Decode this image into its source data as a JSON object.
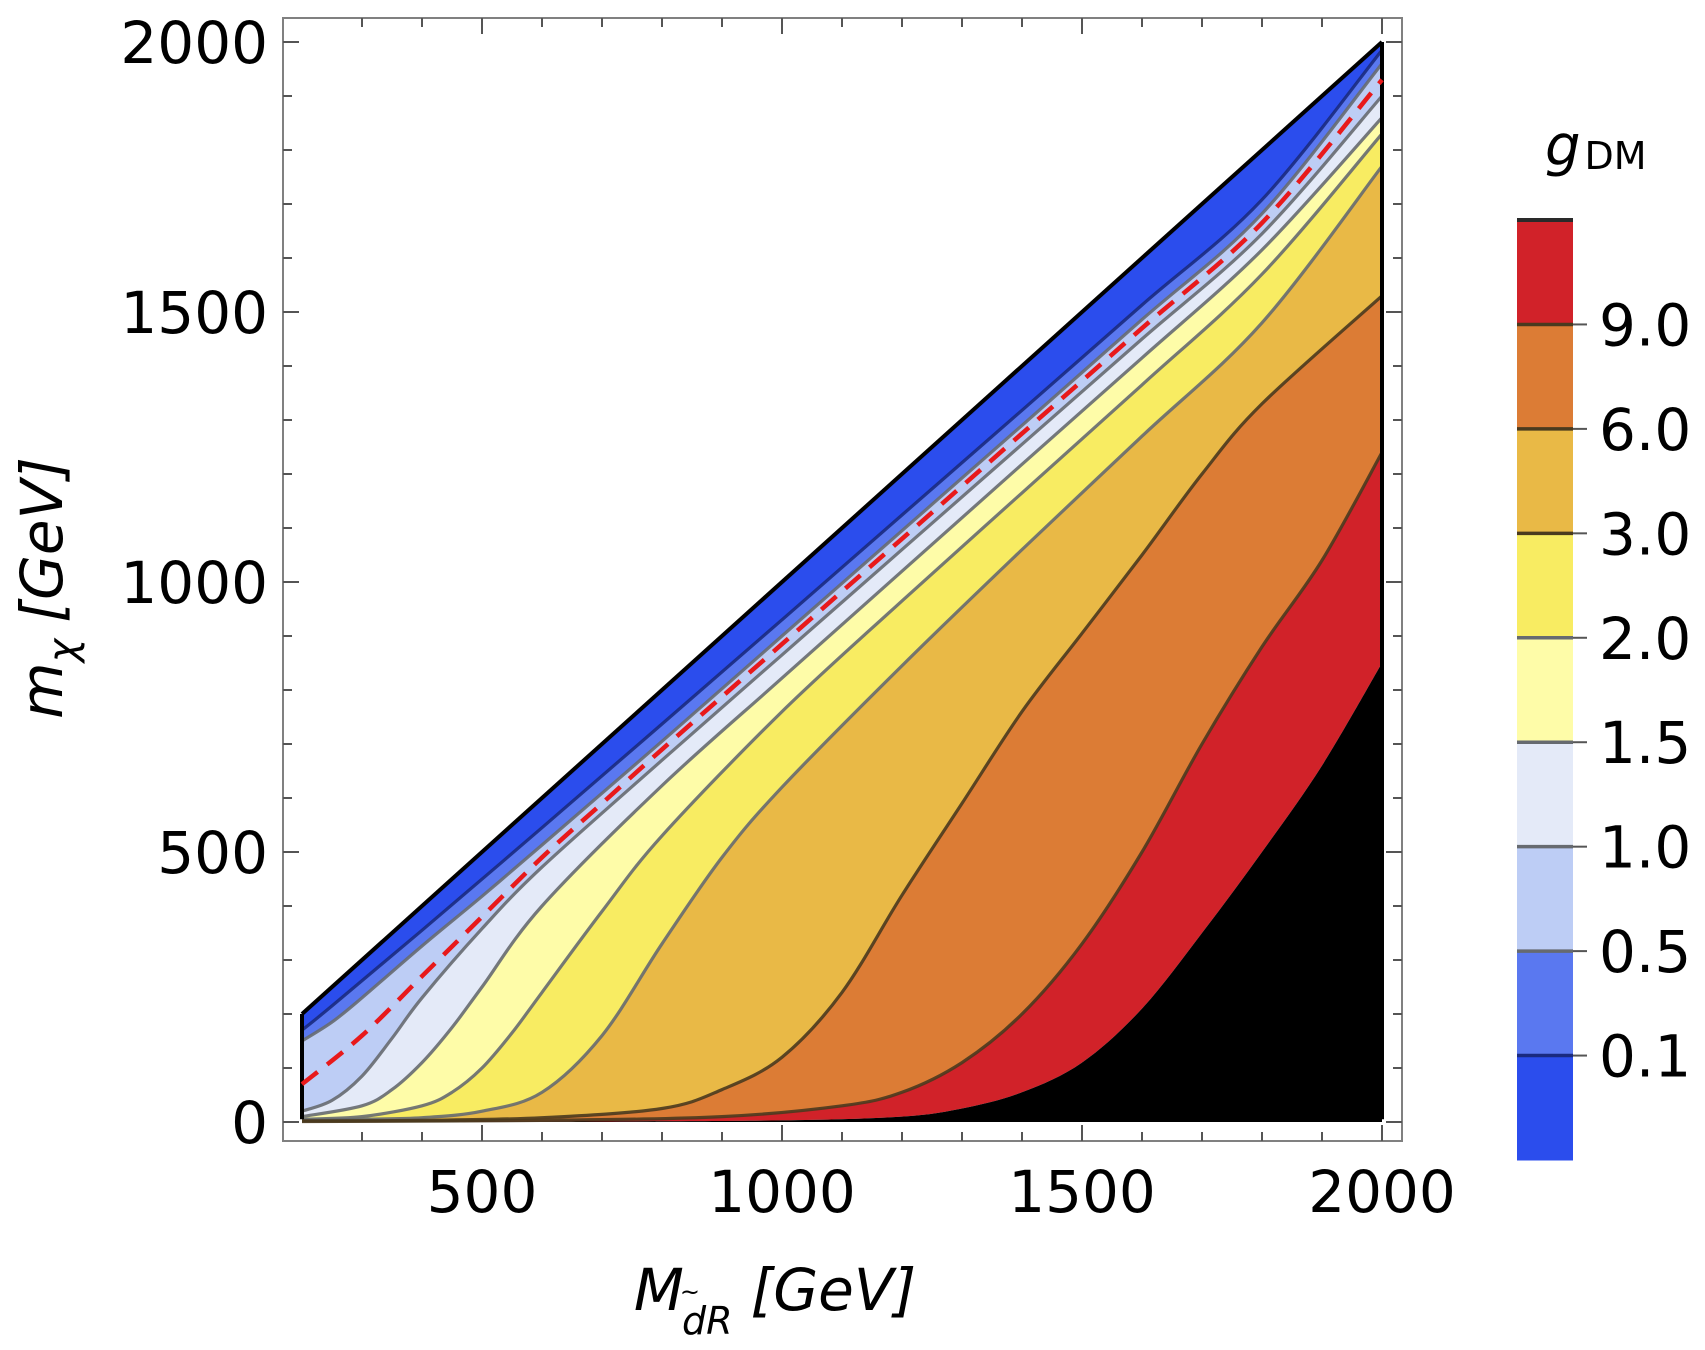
{
  "chart_data": {
    "type": "contour",
    "xlabel": {
      "main": "M",
      "sub_tilde": "~",
      "sub": "dR",
      "unit": "[GeV]"
    },
    "ylabel": {
      "main": "m",
      "sub": "χ",
      "unit": "[GeV]"
    },
    "xlim": [
      200,
      2000
    ],
    "ylim": [
      0,
      2000
    ],
    "xticks": [
      500,
      1000,
      1500,
      2000
    ],
    "yticks": [
      0,
      500,
      1000,
      1500,
      2000
    ],
    "xtick_labels": [
      "500",
      "1000",
      "1500",
      "2000"
    ],
    "ytick_labels": [
      "0",
      "500",
      "1000",
      "1500",
      "2000"
    ],
    "colorbar": {
      "title_main": "g",
      "title_sub": "DM",
      "levels": [
        0.1,
        0.5,
        1.0,
        1.5,
        2.0,
        3.0,
        6.0,
        9.0
      ],
      "level_labels": [
        "0.1",
        "0.5",
        "1.0",
        "1.5",
        "2.0",
        "3.0",
        "6.0",
        "9.0"
      ],
      "band_colors": [
        "#2b4ded",
        "#5a78f0",
        "#bdcdf5",
        "#e4eaf8",
        "#fefca8",
        "#f8ec62",
        "#e9b946",
        "#dc7c35",
        "#d12229"
      ]
    },
    "region_below_contours_color": "#000000",
    "contours": [
      {
        "level": 0.1,
        "points": [
          [
            200,
            170
          ],
          [
            250,
            215
          ],
          [
            400,
            355
          ],
          [
            600,
            545
          ],
          [
            800,
            737
          ],
          [
            1000,
            930
          ],
          [
            1200,
            1124
          ],
          [
            1400,
            1318
          ],
          [
            1600,
            1513
          ],
          [
            1800,
            1708
          ],
          [
            2000,
            1985
          ]
        ]
      },
      {
        "level": 0.5,
        "points": [
          [
            200,
            150
          ],
          [
            250,
            185
          ],
          [
            300,
            230
          ],
          [
            400,
            326
          ],
          [
            500,
            418
          ],
          [
            600,
            513
          ],
          [
            800,
            705
          ],
          [
            1000,
            900
          ],
          [
            1200,
            1095
          ],
          [
            1400,
            1290
          ],
          [
            1600,
            1486
          ],
          [
            1800,
            1682
          ],
          [
            2000,
            1960
          ]
        ]
      },
      {
        "level": 1.0,
        "points": [
          [
            200,
            20
          ],
          [
            250,
            40
          ],
          [
            300,
            85
          ],
          [
            350,
            155
          ],
          [
            400,
            230
          ],
          [
            500,
            358
          ],
          [
            600,
            472
          ],
          [
            800,
            670
          ],
          [
            1000,
            865
          ],
          [
            1200,
            1060
          ],
          [
            1400,
            1255
          ],
          [
            1600,
            1450
          ],
          [
            1800,
            1645
          ],
          [
            2000,
            1900
          ]
        ]
      },
      {
        "level": 1.5,
        "points": [
          [
            200,
            10
          ],
          [
            300,
            30
          ],
          [
            350,
            60
          ],
          [
            400,
            110
          ],
          [
            450,
            175
          ],
          [
            500,
            250
          ],
          [
            600,
            400
          ],
          [
            800,
            623
          ],
          [
            1000,
            822
          ],
          [
            1200,
            1020
          ],
          [
            1400,
            1218
          ],
          [
            1600,
            1415
          ],
          [
            1800,
            1615
          ],
          [
            2000,
            1860
          ]
        ]
      },
      {
        "level": 2.0,
        "points": [
          [
            200,
            5
          ],
          [
            300,
            10
          ],
          [
            400,
            30
          ],
          [
            450,
            55
          ],
          [
            500,
            100
          ],
          [
            550,
            165
          ],
          [
            600,
            240
          ],
          [
            700,
            390
          ],
          [
            800,
            530
          ],
          [
            1000,
            760
          ],
          [
            1200,
            965
          ],
          [
            1400,
            1165
          ],
          [
            1600,
            1365
          ],
          [
            1800,
            1570
          ],
          [
            2000,
            1830
          ]
        ]
      },
      {
        "level": 3.0,
        "points": [
          [
            200,
            3
          ],
          [
            300,
            5
          ],
          [
            400,
            8
          ],
          [
            500,
            20
          ],
          [
            600,
            55
          ],
          [
            700,
            160
          ],
          [
            800,
            330
          ],
          [
            900,
            490
          ],
          [
            1000,
            620
          ],
          [
            1200,
            845
          ],
          [
            1400,
            1060
          ],
          [
            1600,
            1270
          ],
          [
            1800,
            1480
          ],
          [
            2000,
            1770
          ]
        ]
      },
      {
        "level": 6.0,
        "points": [
          [
            200,
            2
          ],
          [
            400,
            3
          ],
          [
            600,
            8
          ],
          [
            800,
            25
          ],
          [
            900,
            60
          ],
          [
            1000,
            120
          ],
          [
            1100,
            240
          ],
          [
            1200,
            420
          ],
          [
            1300,
            590
          ],
          [
            1400,
            760
          ],
          [
            1500,
            905
          ],
          [
            1600,
            1050
          ],
          [
            1700,
            1200
          ],
          [
            1800,
            1330
          ],
          [
            2000,
            1530
          ]
        ]
      },
      {
        "level": 9.0,
        "points": [
          [
            200,
            1
          ],
          [
            600,
            3
          ],
          [
            900,
            10
          ],
          [
            1100,
            30
          ],
          [
            1200,
            55
          ],
          [
            1300,
            110
          ],
          [
            1400,
            200
          ],
          [
            1500,
            330
          ],
          [
            1600,
            500
          ],
          [
            1700,
            700
          ],
          [
            1800,
            880
          ],
          [
            1900,
            1040
          ],
          [
            2000,
            1240
          ]
        ]
      },
      {
        "level": 12.0,
        "points": [
          [
            200,
            0
          ],
          [
            700,
            1
          ],
          [
            1000,
            3
          ],
          [
            1200,
            10
          ],
          [
            1300,
            25
          ],
          [
            1400,
            55
          ],
          [
            1500,
            110
          ],
          [
            1600,
            210
          ],
          [
            1700,
            350
          ],
          [
            1800,
            500
          ],
          [
            1900,
            660
          ],
          [
            2000,
            850
          ]
        ]
      }
    ],
    "reference_line": {
      "style": "dashed",
      "color": "#e8191b",
      "points": [
        [
          200,
          70
        ],
        [
          300,
          160
        ],
        [
          400,
          270
        ],
        [
          500,
          380
        ],
        [
          600,
          490
        ],
        [
          700,
          590
        ],
        [
          800,
          690
        ],
        [
          1000,
          885
        ],
        [
          1200,
          1080
        ],
        [
          1400,
          1275
        ],
        [
          1600,
          1470
        ],
        [
          1800,
          1665
        ],
        [
          2000,
          1930
        ]
      ]
    },
    "domain_upper_boundary": [
      [
        200,
        200
      ],
      [
        2000,
        2000
      ]
    ]
  }
}
